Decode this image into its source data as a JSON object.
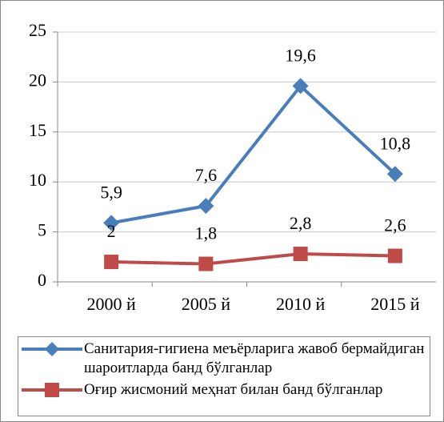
{
  "chart_data": {
    "type": "line",
    "categories": [
      "2000 й",
      "2005 й",
      "2010 й",
      "2015 й"
    ],
    "series": [
      {
        "name": "Санитария-гигиена  меъёрларига жавоб бермайдиган  шароитларда банд бўлганлар",
        "color": "#4a7ebb",
        "values": [
          5.9,
          7.6,
          19.6,
          10.8
        ],
        "value_labels": [
          "5,9",
          "7,6",
          "19,6",
          "10,8"
        ]
      },
      {
        "name": "Оғир жисмоний меҳнат билан банд бўлганлар",
        "color": "#be4b48",
        "values": [
          2,
          1.8,
          2.8,
          2.6
        ],
        "value_labels": [
          "2",
          "1,8",
          "2,8",
          "2,6"
        ]
      }
    ],
    "ylim": [
      0,
      25
    ],
    "yticks": [
      0,
      5,
      10,
      15,
      20,
      25
    ],
    "grid": true,
    "legend": "bottom"
  }
}
